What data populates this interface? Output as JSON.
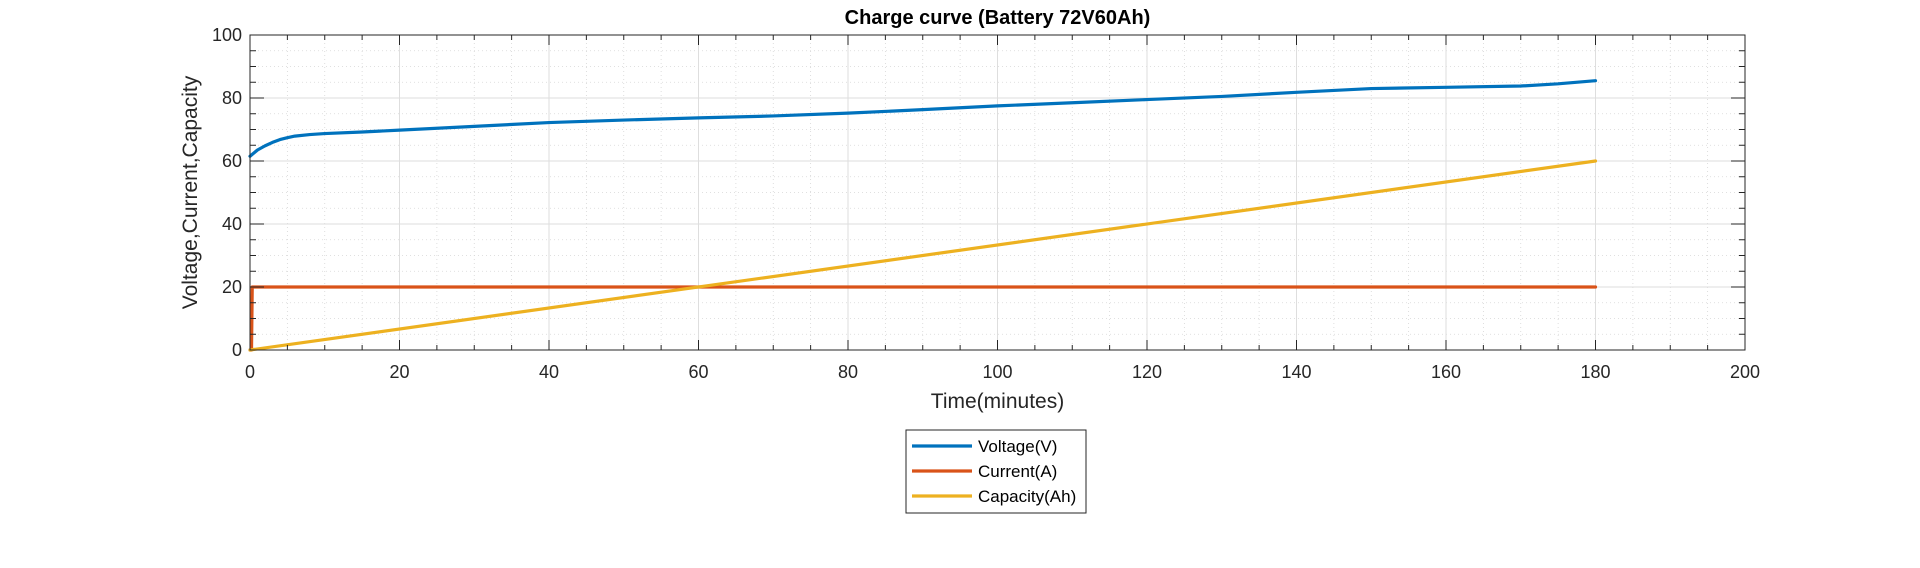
{
  "chart_data": {
    "type": "line",
    "title": "Charge curve (Battery 72V60Ah)",
    "xlabel": "Time(minutes)",
    "ylabel": "Voltage,Current,Capacity",
    "xlim": [
      0,
      200
    ],
    "ylim": [
      0,
      100
    ],
    "x_ticks": [
      0,
      20,
      40,
      60,
      80,
      100,
      120,
      140,
      160,
      180,
      200
    ],
    "y_ticks": [
      0,
      20,
      40,
      60,
      80,
      100
    ],
    "grid": true,
    "minor_grid": true,
    "legend_position": "bottom-center-outside",
    "series": [
      {
        "name": "Voltage(V)",
        "color": "#0072BD",
        "x": [
          0,
          1,
          2,
          3,
          4,
          5,
          6,
          8,
          10,
          15,
          20,
          30,
          40,
          50,
          60,
          70,
          80,
          90,
          100,
          110,
          120,
          130,
          140,
          150,
          160,
          170,
          175,
          180
        ],
        "y": [
          61.5,
          63.5,
          64.8,
          65.9,
          66.8,
          67.4,
          67.9,
          68.4,
          68.7,
          69.2,
          69.8,
          71.0,
          72.2,
          73.0,
          73.7,
          74.3,
          75.2,
          76.3,
          77.5,
          78.5,
          79.5,
          80.5,
          81.8,
          83.0,
          83.4,
          83.8,
          84.5,
          85.5
        ]
      },
      {
        "name": "Current(A)",
        "color": "#D95319",
        "x": [
          0,
          0.2,
          0.3,
          180
        ],
        "y": [
          0,
          0,
          20,
          20
        ]
      },
      {
        "name": "Capacity(Ah)",
        "color": "#EDB120",
        "x": [
          0,
          180
        ],
        "y": [
          0,
          60
        ]
      }
    ]
  }
}
